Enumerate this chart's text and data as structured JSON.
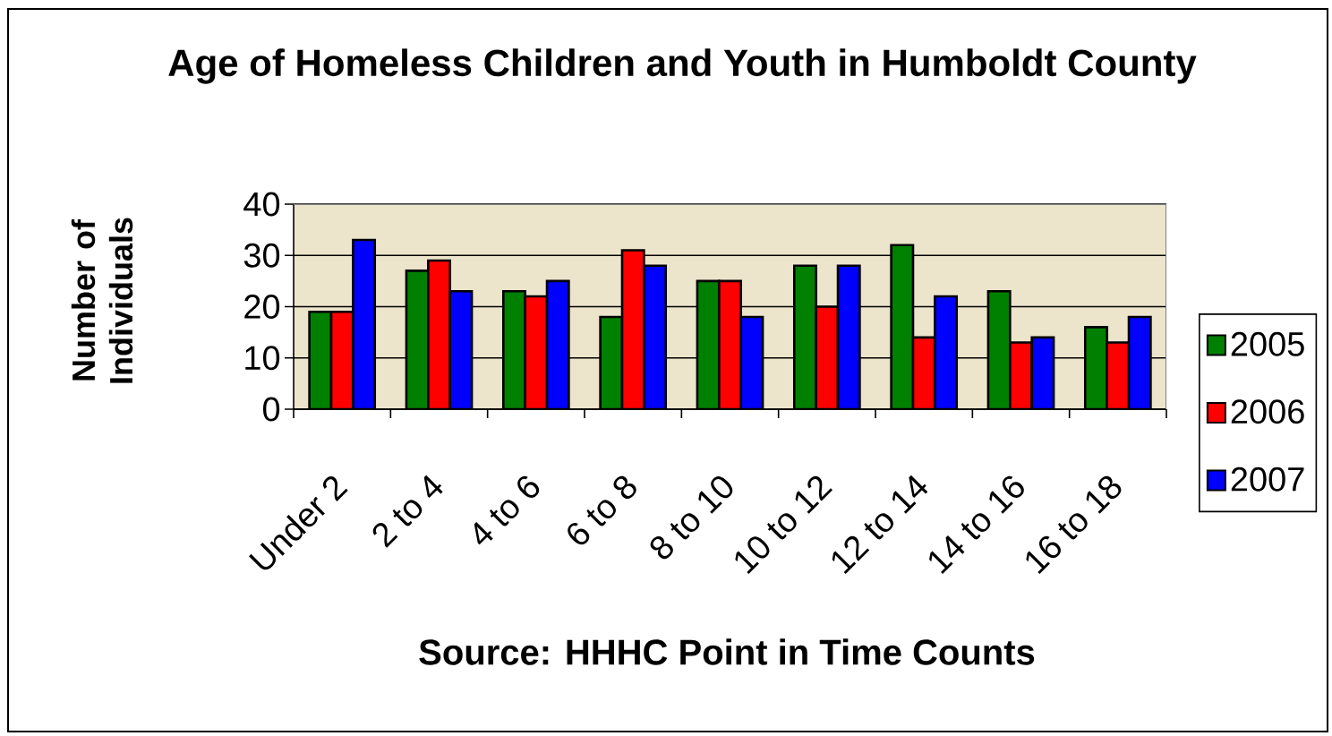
{
  "chart_data": {
    "type": "bar",
    "title": "Age of Homeless Children and Youth in Humboldt County",
    "ylabel": "Number of Individuals",
    "annotations": [
      "Source: HHHC Point in Time Counts"
    ],
    "categories": [
      "Under 2",
      "2 to 4",
      "4 to 6",
      "6 to 8",
      "8 to 10",
      "10 to 12",
      "12 to 14",
      "14 to 16",
      "16 to 18"
    ],
    "series": [
      {
        "name": "2005",
        "color": "#008000",
        "values": [
          19,
          27,
          23,
          18,
          25,
          28,
          32,
          23,
          16
        ]
      },
      {
        "name": "2006",
        "color": "#ff0000",
        "values": [
          19,
          29,
          22,
          31,
          25,
          20,
          14,
          13,
          13
        ]
      },
      {
        "name": "2007",
        "color": "#0000ff",
        "values": [
          33,
          23,
          25,
          28,
          18,
          28,
          22,
          14,
          18
        ]
      }
    ],
    "ylim": [
      0,
      40
    ],
    "yticks": [
      0,
      10,
      20,
      30,
      40
    ],
    "grid": "y",
    "legend": "right"
  }
}
